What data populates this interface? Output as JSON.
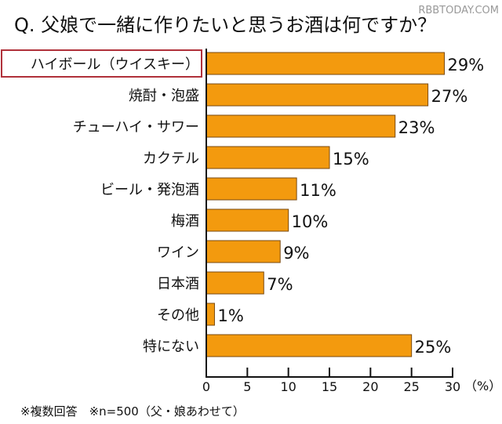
{
  "watermark": "RBBTODAY.COM",
  "chart_data": {
    "type": "bar",
    "orientation": "horizontal",
    "title": "Q. 父娘で一緒に作りたいと思うお酒は何ですか？",
    "categories": [
      "ハイボール（ウイスキー）",
      "焼酎・泡盛",
      "チューハイ・サワー",
      "カクテル",
      "ビール・発泡酒",
      "梅酒",
      "ワイン",
      "日本酒",
      "その他",
      "特にない"
    ],
    "values": [
      29,
      27,
      23,
      15,
      11,
      10,
      9,
      7,
      1,
      25
    ],
    "data_labels": [
      "29%",
      "27%",
      "23%",
      "15%",
      "11%",
      "10%",
      "9%",
      "7%",
      "1%",
      "25%"
    ],
    "highlighted_category": "ハイボール（ウイスキー）",
    "xlim": [
      0,
      30
    ],
    "xticks": [
      "0",
      "5",
      "10",
      "15",
      "20",
      "25",
      "30"
    ],
    "xunit": "（%）",
    "grid": false,
    "footnote": "※複数回答　※n=500（父・娘あわせて）",
    "colors": {
      "bar": "#F39A0E",
      "bar_border": "#7a4a10",
      "highlight_box": "#b0303a"
    }
  }
}
